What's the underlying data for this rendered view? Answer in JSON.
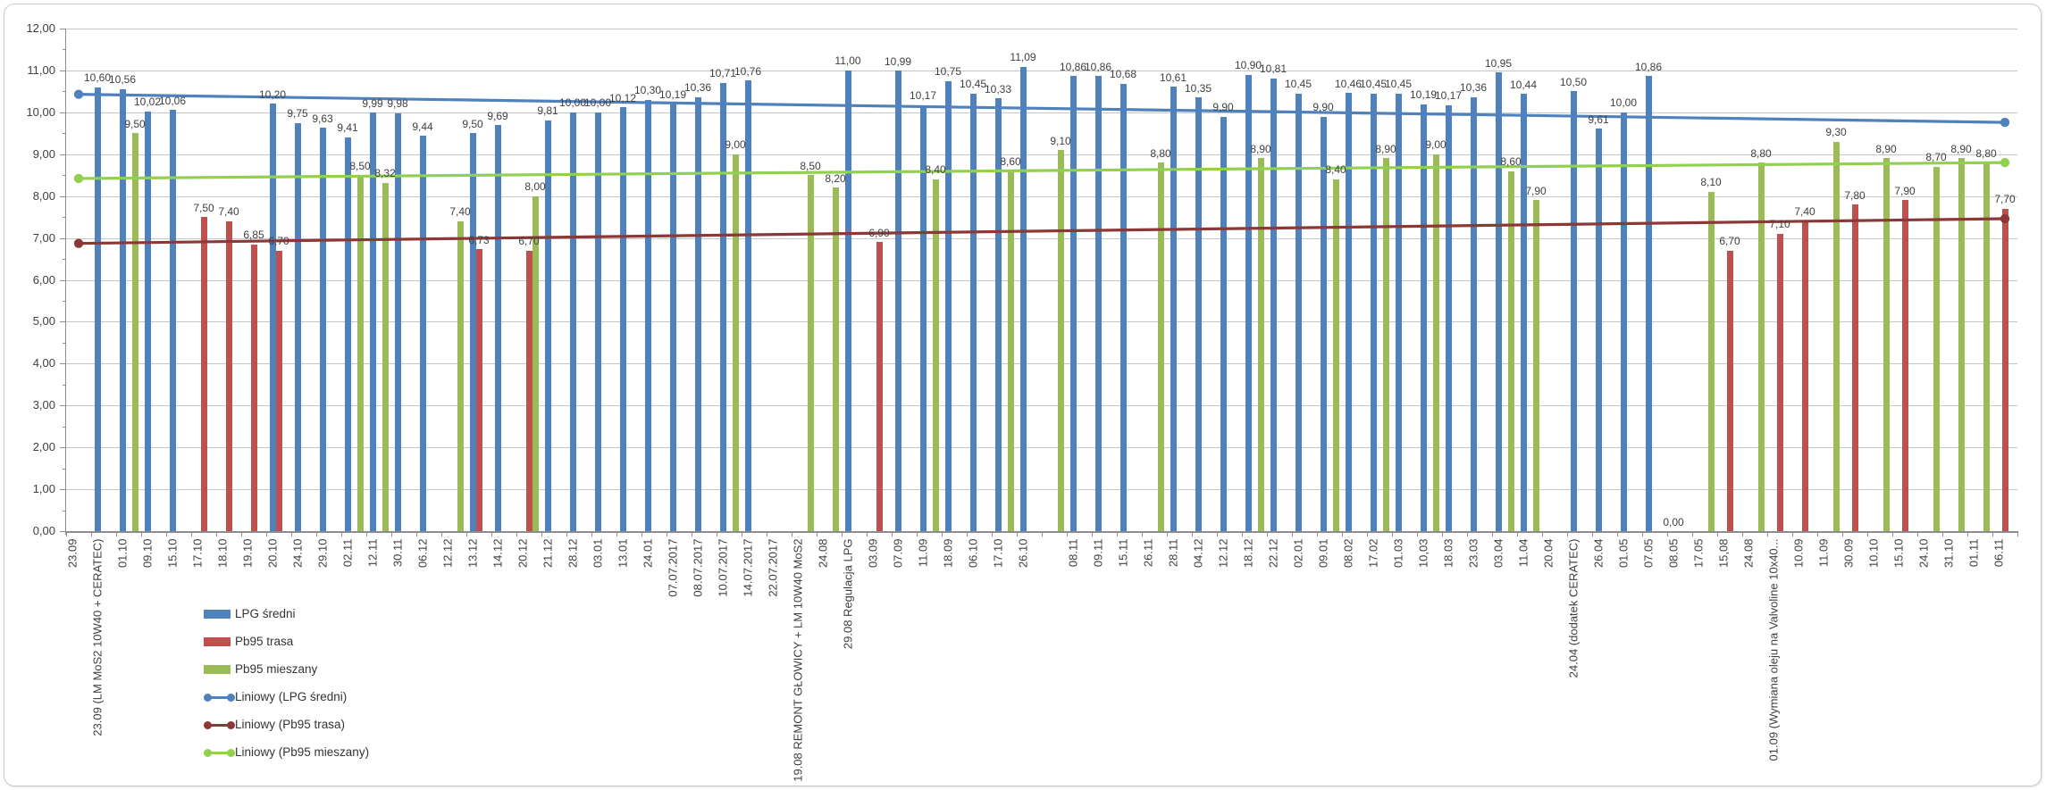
{
  "chart_data": {
    "type": "bar",
    "title": "",
    "xlabel": "",
    "ylabel": "",
    "ylim": [
      0,
      12
    ],
    "ytick_step": 1,
    "ytick_labels": [
      "0,00",
      "1,00",
      "2,00",
      "3,00",
      "4,00",
      "5,00",
      "6,00",
      "7,00",
      "8,00",
      "9,00",
      "10,00",
      "11,00",
      "12,00"
    ],
    "grid": true,
    "decimal_separator": ",",
    "legend_position": "bottom-left",
    "series": [
      {
        "name": "LPG średni",
        "type": "bar",
        "color": "#4f81bd",
        "key": "lpg"
      },
      {
        "name": "Pb95 trasa",
        "type": "bar",
        "color": "#c0504d",
        "key": "trasa"
      },
      {
        "name": "Pb95 mieszany",
        "type": "bar",
        "color": "#9bbb59",
        "key": "mieszany"
      },
      {
        "name": "Liniowy (LPG średni)",
        "type": "trendline",
        "color": "#4f81bd",
        "start": 10.43,
        "end": 9.76
      },
      {
        "name": "Liniowy (Pb95 trasa)",
        "type": "trendline",
        "color": "#8c3836",
        "start": 6.87,
        "end": 7.46
      },
      {
        "name": "Liniowy (Pb95 mieszany)",
        "type": "trendline",
        "color": "#92d050",
        "start": 8.42,
        "end": 8.8
      }
    ],
    "categories_format": [
      "label",
      "lpg",
      "trasa",
      "mieszany"
    ],
    "categories": [
      [
        "23.09",
        null,
        null,
        null
      ],
      [
        "23.09 (LM MoS2 10W40 + CERATEC)",
        10.6,
        null,
        null
      ],
      [
        "01.10",
        10.56,
        null,
        9.5
      ],
      [
        "09.10",
        10.02,
        null,
        null
      ],
      [
        "15.10",
        10.06,
        null,
        null
      ],
      [
        "17.10",
        null,
        7.5,
        null
      ],
      [
        "18.10",
        null,
        7.4,
        null
      ],
      [
        "19.10",
        null,
        6.85,
        null
      ],
      [
        "20.10",
        10.2,
        6.7,
        null
      ],
      [
        "24.10",
        9.75,
        null,
        null
      ],
      [
        "29.10",
        9.63,
        null,
        null
      ],
      [
        "02.11",
        9.41,
        null,
        8.5
      ],
      [
        "12.11",
        9.99,
        null,
        8.32
      ],
      [
        "30.11",
        9.98,
        null,
        null
      ],
      [
        "06.12",
        9.44,
        null,
        null
      ],
      [
        "12.12",
        null,
        null,
        7.4
      ],
      [
        "13.12",
        9.5,
        6.73,
        null
      ],
      [
        "14.12",
        9.69,
        null,
        null
      ],
      [
        "20.12",
        null,
        6.7,
        8.0
      ],
      [
        "21.12",
        9.81,
        null,
        null
      ],
      [
        "28.12",
        10.0,
        null,
        null
      ],
      [
        "03.01",
        10.0,
        null,
        null
      ],
      [
        "13.01",
        10.12,
        null,
        null
      ],
      [
        "24.01",
        10.3,
        null,
        null
      ],
      [
        "07.07.2017",
        10.19,
        null,
        null
      ],
      [
        "08.07.2017",
        10.36,
        null,
        null
      ],
      [
        "10.07.2017",
        10.71,
        null,
        9.0
      ],
      [
        "14.07.2017",
        10.76,
        null,
        null
      ],
      [
        "22.07.2017",
        null,
        null,
        null
      ],
      [
        "19.08 REMONT GŁOWICY + LM 10W40 MoS2",
        null,
        null,
        8.5
      ],
      [
        "24.08",
        null,
        null,
        8.2
      ],
      [
        "29.08 Regulacja LPG",
        11.0,
        null,
        null
      ],
      [
        "03.09",
        null,
        6.9,
        null
      ],
      [
        "07.09",
        10.99,
        null,
        null
      ],
      [
        "11.09",
        10.17,
        null,
        8.4
      ],
      [
        "18.09",
        10.75,
        null,
        null
      ],
      [
        "06.10",
        10.45,
        null,
        null
      ],
      [
        "17.10",
        10.33,
        null,
        8.6
      ],
      [
        "26.10",
        11.09,
        null,
        null
      ],
      [
        "",
        null,
        null,
        9.1
      ],
      [
        "08.11",
        10.86,
        null,
        null
      ],
      [
        "09.11",
        10.86,
        null,
        null
      ],
      [
        "15.11",
        10.68,
        null,
        null
      ],
      [
        "26.11",
        null,
        null,
        8.8
      ],
      [
        "28.11",
        10.61,
        null,
        null
      ],
      [
        "04.12",
        10.35,
        null,
        null
      ],
      [
        "12.12",
        9.9,
        null,
        null
      ],
      [
        "18.12",
        10.9,
        null,
        8.9
      ],
      [
        "22.12",
        10.81,
        null,
        null
      ],
      [
        "02.01",
        10.45,
        null,
        null
      ],
      [
        "09.01",
        9.9,
        null,
        8.4
      ],
      [
        "08.02",
        10.46,
        null,
        null
      ],
      [
        "17.02",
        10.45,
        null,
        8.9
      ],
      [
        "01.03",
        10.45,
        null,
        null
      ],
      [
        "10,03",
        10.19,
        null,
        9.0
      ],
      [
        "18.03",
        10.17,
        null,
        null
      ],
      [
        "23.03",
        10.36,
        null,
        null
      ],
      [
        "03.04",
        10.95,
        null,
        8.6
      ],
      [
        "11.04",
        10.44,
        null,
        7.9
      ],
      [
        "20.04",
        null,
        null,
        null
      ],
      [
        "24.04 (dodatek CERATEC)",
        10.5,
        null,
        null
      ],
      [
        "26.04",
        9.61,
        null,
        null
      ],
      [
        "01.05",
        10.0,
        null,
        null
      ],
      [
        "07.05",
        10.86,
        null,
        null
      ],
      [
        "08.05",
        0.0,
        null,
        null
      ],
      [
        "17.05",
        null,
        null,
        8.1
      ],
      [
        "15,08",
        null,
        6.7,
        null
      ],
      [
        "24.08",
        null,
        null,
        8.8
      ],
      [
        "01.09 (Wymiana oleju na Valvoline 10x40...",
        null,
        7.1,
        null
      ],
      [
        "10.09",
        null,
        7.4,
        null
      ],
      [
        "11.09",
        null,
        null,
        9.3
      ],
      [
        "30.09",
        null,
        7.8,
        null
      ],
      [
        "10.10",
        null,
        null,
        8.9
      ],
      [
        "15.10",
        null,
        7.9,
        null
      ],
      [
        "24.10",
        null,
        null,
        8.7
      ],
      [
        "31.10",
        null,
        null,
        8.9
      ],
      [
        "01.11",
        null,
        null,
        8.8
      ],
      [
        "06.11",
        null,
        7.7,
        null
      ]
    ]
  },
  "colors": {
    "background": "#ffffff",
    "gridline": "#c6c6c6",
    "axis": "#8c8c8c",
    "tick_label": "#3f3f3f",
    "data_label": "#404040",
    "border": "#c9c9c9"
  }
}
